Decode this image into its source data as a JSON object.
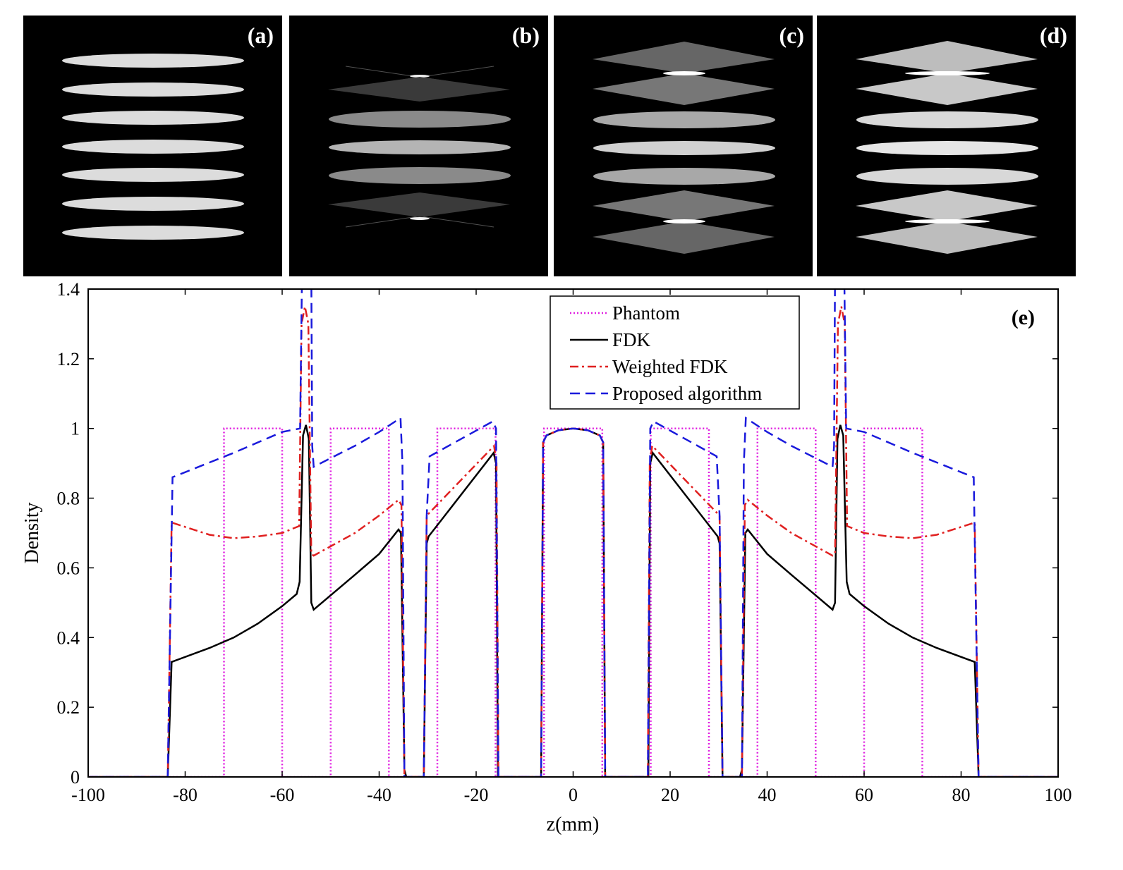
{
  "panels": [
    {
      "label": "(a)"
    },
    {
      "label": "(b)"
    },
    {
      "label": "(c)"
    },
    {
      "label": "(d)"
    }
  ],
  "chart_data": {
    "type": "line",
    "panel_label": "(e)",
    "xlabel": "z(mm)",
    "ylabel": "Density",
    "xlim": [
      -100,
      100
    ],
    "ylim": [
      0,
      1.4
    ],
    "xticks": [
      -100,
      -80,
      -60,
      -40,
      -20,
      0,
      20,
      40,
      60,
      80,
      100
    ],
    "yticks": [
      0,
      0.2,
      0.4,
      0.6,
      0.8,
      1,
      1.2,
      1.4
    ],
    "ytick_labels": [
      "0",
      "0.2",
      "0.4",
      "0.6",
      "0.8",
      "1",
      "1.2",
      "1.4"
    ],
    "grid": false,
    "legend_position": "top-center",
    "series": [
      {
        "name": "Phantom",
        "color": "#e020e0",
        "style": "dotted",
        "points": [
          [
            -100,
            0
          ],
          [
            -72,
            0
          ],
          [
            -72,
            1
          ],
          [
            -60,
            1
          ],
          [
            -60,
            0
          ],
          [
            -50,
            0
          ],
          [
            -50,
            1
          ],
          [
            -38,
            1
          ],
          [
            -38,
            0
          ],
          [
            -28,
            0
          ],
          [
            -28,
            1
          ],
          [
            -16,
            1
          ],
          [
            -16,
            0
          ],
          [
            -6,
            0
          ],
          [
            -6,
            1
          ],
          [
            6,
            1
          ],
          [
            6,
            0
          ],
          [
            16,
            0
          ],
          [
            16,
            1
          ],
          [
            28,
            1
          ],
          [
            28,
            0
          ],
          [
            38,
            0
          ],
          [
            38,
            1
          ],
          [
            50,
            1
          ],
          [
            50,
            0
          ],
          [
            60,
            0
          ],
          [
            60,
            1
          ],
          [
            72,
            1
          ],
          [
            72,
            0
          ],
          [
            100,
            0
          ]
        ]
      },
      {
        "name": "FDK",
        "color": "#000000",
        "style": "solid",
        "points": [
          [
            -100,
            0
          ],
          [
            -83.6,
            0
          ],
          [
            -82.8,
            0.33
          ],
          [
            -75,
            0.37
          ],
          [
            -70,
            0.4
          ],
          [
            -65,
            0.44
          ],
          [
            -60,
            0.49
          ],
          [
            -57,
            0.525
          ],
          [
            -56.4,
            0.56
          ],
          [
            -55.7,
            0.98
          ],
          [
            -55.1,
            1.01
          ],
          [
            -54.5,
            0.97
          ],
          [
            -54,
            0.5
          ],
          [
            -53.5,
            0.48
          ],
          [
            -45,
            0.58
          ],
          [
            -40,
            0.64
          ],
          [
            -36,
            0.71
          ],
          [
            -35.5,
            0.7
          ],
          [
            -34.8,
            0.02
          ],
          [
            -34.4,
            0
          ],
          [
            -30.8,
            0
          ],
          [
            -30.2,
            0.67
          ],
          [
            -29.8,
            0.69
          ],
          [
            -16.4,
            0.93
          ],
          [
            -15.9,
            0.9
          ],
          [
            -15.5,
            0
          ],
          [
            -6.6,
            0
          ],
          [
            -6.2,
            0.96
          ],
          [
            -5.5,
            0.98
          ],
          [
            -3,
            0.995
          ],
          [
            0,
            1
          ],
          [
            3,
            0.995
          ],
          [
            5.5,
            0.98
          ],
          [
            6.2,
            0.96
          ],
          [
            6.6,
            0
          ],
          [
            15.5,
            0
          ],
          [
            15.9,
            0.9
          ],
          [
            16.4,
            0.93
          ],
          [
            29.8,
            0.69
          ],
          [
            30.2,
            0.67
          ],
          [
            30.8,
            0
          ],
          [
            34.4,
            0
          ],
          [
            34.8,
            0.02
          ],
          [
            35.5,
            0.7
          ],
          [
            36,
            0.71
          ],
          [
            40,
            0.64
          ],
          [
            45,
            0.58
          ],
          [
            53.5,
            0.48
          ],
          [
            54,
            0.5
          ],
          [
            54.5,
            0.97
          ],
          [
            55.1,
            1.01
          ],
          [
            55.7,
            0.98
          ],
          [
            56.4,
            0.56
          ],
          [
            57,
            0.525
          ],
          [
            60,
            0.49
          ],
          [
            65,
            0.44
          ],
          [
            70,
            0.4
          ],
          [
            75,
            0.37
          ],
          [
            82.8,
            0.33
          ],
          [
            83.6,
            0
          ],
          [
            100,
            0
          ]
        ]
      },
      {
        "name": "Weighted FDK",
        "color": "#e02020",
        "style": "dashdot",
        "points": [
          [
            -100,
            0
          ],
          [
            -83.6,
            0
          ],
          [
            -82.8,
            0.73
          ],
          [
            -75,
            0.695
          ],
          [
            -70,
            0.685
          ],
          [
            -65,
            0.69
          ],
          [
            -60,
            0.7
          ],
          [
            -56.5,
            0.72
          ],
          [
            -56,
            1.3
          ],
          [
            -55.3,
            1.35
          ],
          [
            -54.6,
            1.3
          ],
          [
            -54,
            0.64
          ],
          [
            -53.5,
            0.635
          ],
          [
            -45,
            0.7
          ],
          [
            -40,
            0.75
          ],
          [
            -36,
            0.795
          ],
          [
            -35.4,
            0.78
          ],
          [
            -34.8,
            0
          ],
          [
            -30.8,
            0
          ],
          [
            -30.2,
            0.75
          ],
          [
            -16.3,
            0.95
          ],
          [
            -15.8,
            0.9
          ],
          [
            -15.4,
            0
          ],
          [
            -6.6,
            0
          ],
          [
            -6.2,
            0.96
          ],
          [
            -5.5,
            0.98
          ],
          [
            -3,
            0.995
          ],
          [
            0,
            1
          ],
          [
            3,
            0.995
          ],
          [
            5.5,
            0.98
          ],
          [
            6.2,
            0.96
          ],
          [
            6.6,
            0
          ],
          [
            15.4,
            0
          ],
          [
            15.8,
            0.9
          ],
          [
            16.3,
            0.95
          ],
          [
            30.2,
            0.75
          ],
          [
            30.8,
            0
          ],
          [
            34.8,
            0
          ],
          [
            35.4,
            0.78
          ],
          [
            36,
            0.795
          ],
          [
            40,
            0.75
          ],
          [
            45,
            0.7
          ],
          [
            53.5,
            0.635
          ],
          [
            54,
            0.64
          ],
          [
            54.6,
            1.3
          ],
          [
            55.3,
            1.35
          ],
          [
            56,
            1.3
          ],
          [
            56.5,
            0.72
          ],
          [
            60,
            0.7
          ],
          [
            65,
            0.69
          ],
          [
            70,
            0.685
          ],
          [
            75,
            0.695
          ],
          [
            82.8,
            0.73
          ],
          [
            83.6,
            0
          ],
          [
            100,
            0
          ]
        ]
      },
      {
        "name": "Proposed algorithm",
        "color": "#1a1adc",
        "style": "dashed",
        "points": [
          [
            -100,
            0
          ],
          [
            -83.6,
            0
          ],
          [
            -82.6,
            0.86
          ],
          [
            -70,
            0.93
          ],
          [
            -60,
            0.99
          ],
          [
            -56.3,
            1.0
          ],
          [
            -55.9,
            1.45
          ],
          [
            -54,
            1.45
          ],
          [
            -53.8,
            0.95
          ],
          [
            -53.5,
            0.89
          ],
          [
            -45,
            0.95
          ],
          [
            -40,
            0.99
          ],
          [
            -35.6,
            1.03
          ],
          [
            -35.2,
            0.9
          ],
          [
            -34.8,
            0
          ],
          [
            -30.8,
            0
          ],
          [
            -30.2,
            0.75
          ],
          [
            -29.6,
            0.92
          ],
          [
            -16.6,
            1.02
          ],
          [
            -15.9,
            1.0
          ],
          [
            -15.4,
            0
          ],
          [
            -6.6,
            0
          ],
          [
            -6.2,
            0.96
          ],
          [
            -5.5,
            0.98
          ],
          [
            -3,
            0.995
          ],
          [
            0,
            1
          ],
          [
            3,
            0.995
          ],
          [
            5.5,
            0.98
          ],
          [
            6.2,
            0.96
          ],
          [
            6.6,
            0
          ],
          [
            15.4,
            0
          ],
          [
            15.9,
            1.0
          ],
          [
            16.6,
            1.02
          ],
          [
            29.6,
            0.92
          ],
          [
            30.2,
            0.75
          ],
          [
            30.8,
            0
          ],
          [
            34.8,
            0
          ],
          [
            35.2,
            0.9
          ],
          [
            35.6,
            1.03
          ],
          [
            40,
            0.99
          ],
          [
            45,
            0.95
          ],
          [
            53.5,
            0.89
          ],
          [
            53.8,
            0.95
          ],
          [
            54,
            1.45
          ],
          [
            55.9,
            1.45
          ],
          [
            56.3,
            1.0
          ],
          [
            60,
            0.99
          ],
          [
            70,
            0.93
          ],
          [
            82.6,
            0.86
          ],
          [
            83.6,
            0
          ],
          [
            100,
            0
          ]
        ]
      }
    ]
  }
}
